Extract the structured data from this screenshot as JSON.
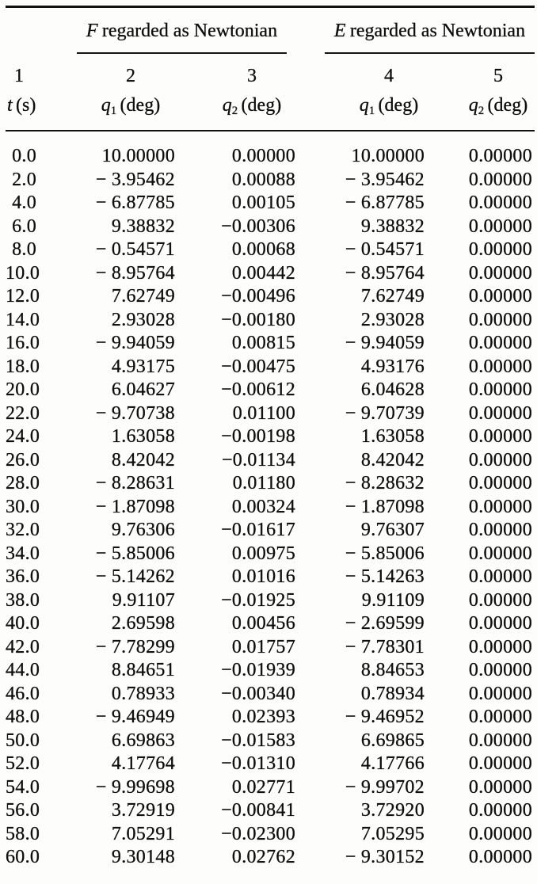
{
  "page": {
    "background_color": "#fdfdfb",
    "ink_color": "#0e0e0e"
  },
  "table": {
    "groups": [
      {
        "symbol": "F",
        "text": "regarded as Newtonian"
      },
      {
        "symbol": "E",
        "text": "regarded as Newtonian"
      }
    ],
    "columns": [
      {
        "number": "1",
        "symbol": "t",
        "sub": "",
        "unit": "(s)"
      },
      {
        "number": "2",
        "symbol": "q",
        "sub": "1",
        "unit": "(deg)"
      },
      {
        "number": "3",
        "symbol": "q",
        "sub": "2",
        "unit": "(deg)"
      },
      {
        "number": "4",
        "symbol": "q",
        "sub": "1",
        "unit": "(deg)"
      },
      {
        "number": "5",
        "symbol": "q",
        "sub": "2",
        "unit": "(deg)"
      }
    ],
    "rows": [
      [
        "0.0",
        "10.00000",
        "0.00000",
        "10.00000",
        "0.00000"
      ],
      [
        "2.0",
        "− 3.95462",
        "0.00088",
        "− 3.95462",
        "0.00000"
      ],
      [
        "4.0",
        "− 6.87785",
        "0.00105",
        "− 6.87785",
        "0.00000"
      ],
      [
        "6.0",
        "9.38832",
        "−0.00306",
        "9.38832",
        "0.00000"
      ],
      [
        "8.0",
        "− 0.54571",
        "0.00068",
        "− 0.54571",
        "0.00000"
      ],
      [
        "10.0",
        "− 8.95764",
        "0.00442",
        "− 8.95764",
        "0.00000"
      ],
      [
        "12.0",
        "7.62749",
        "−0.00496",
        "7.62749",
        "0.00000"
      ],
      [
        "14.0",
        "2.93028",
        "−0.00180",
        "2.93028",
        "0.00000"
      ],
      [
        "16.0",
        "− 9.94059",
        "0.00815",
        "− 9.94059",
        "0.00000"
      ],
      [
        "18.0",
        "4.93175",
        "−0.00475",
        "4.93176",
        "0.00000"
      ],
      [
        "20.0",
        "6.04627",
        "−0.00612",
        "6.04628",
        "0.00000"
      ],
      [
        "22.0",
        "− 9.70738",
        "0.01100",
        "− 9.70739",
        "0.00000"
      ],
      [
        "24.0",
        "1.63058",
        "−0.00198",
        "1.63058",
        "0.00000"
      ],
      [
        "26.0",
        "8.42042",
        "−0.01134",
        "8.42042",
        "0.00000"
      ],
      [
        "28.0",
        "− 8.28631",
        "0.01180",
        "− 8.28632",
        "0.00000"
      ],
      [
        "30.0",
        "− 1.87098",
        "0.00324",
        "− 1.87098",
        "0.00000"
      ],
      [
        "32.0",
        "9.76306",
        "−0.01617",
        "9.76307",
        "0.00000"
      ],
      [
        "34.0",
        "− 5.85006",
        "0.00975",
        "− 5.85006",
        "0.00000"
      ],
      [
        "36.0",
        "− 5.14262",
        "0.01016",
        "− 5.14263",
        "0.00000"
      ],
      [
        "38.0",
        "9.91107",
        "−0.01925",
        "9.91109",
        "0.00000"
      ],
      [
        "40.0",
        "2.69598",
        "0.00456",
        "− 2.69599",
        "0.00000"
      ],
      [
        "42.0",
        "− 7.78299",
        "0.01757",
        "− 7.78301",
        "0.00000"
      ],
      [
        "44.0",
        "8.84651",
        "−0.01939",
        "8.84653",
        "0.00000"
      ],
      [
        "46.0",
        "0.78933",
        "−0.00340",
        "0.78934",
        "0.00000"
      ],
      [
        "48.0",
        "− 9.46949",
        "0.02393",
        "− 9.46952",
        "0.00000"
      ],
      [
        "50.0",
        "6.69863",
        "−0.01583",
        "6.69865",
        "0.00000"
      ],
      [
        "52.0",
        "4.17764",
        "−0.01310",
        "4.17766",
        "0.00000"
      ],
      [
        "54.0",
        "− 9.99698",
        "0.02771",
        "− 9.99702",
        "0.00000"
      ],
      [
        "56.0",
        "3.72919",
        "−0.00841",
        "3.72920",
        "0.00000"
      ],
      [
        "58.0",
        "7.05291",
        "−0.02300",
        "7.05295",
        "0.00000"
      ],
      [
        "60.0",
        "9.30148",
        "0.02762",
        "− 9.30152",
        "0.00000"
      ]
    ]
  }
}
